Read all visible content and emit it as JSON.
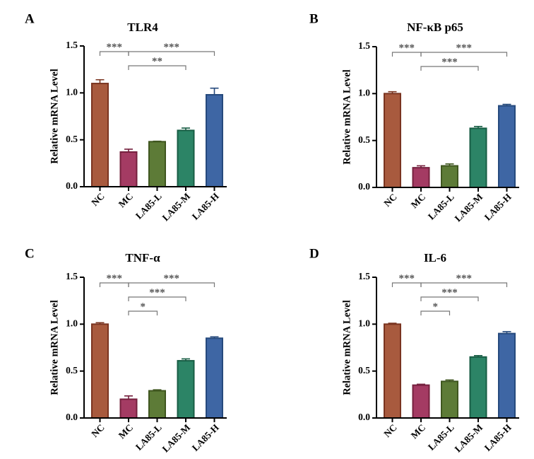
{
  "chart_data": [
    {
      "type": "bar",
      "panel": "A",
      "title": "TLR4",
      "ylabel": "Relative mRNA Level",
      "xlabel": "",
      "ylim": [
        0,
        1.5
      ],
      "yticks": [
        "0.0",
        "0.5",
        "1.0",
        "1.5"
      ],
      "categories": [
        "NC",
        "MC",
        "LA85-L",
        "LA85-M",
        "LA85-H"
      ],
      "values": [
        1.1,
        0.37,
        0.48,
        0.6,
        0.98
      ],
      "errors": [
        0.04,
        0.03,
        0.005,
        0.025,
        0.07
      ],
      "significance": [
        {
          "from": 0,
          "to": 1,
          "label": "***",
          "level": 0
        },
        {
          "from": 1,
          "to": 3,
          "label": "**",
          "level": 1
        },
        {
          "from": 1,
          "to": 4,
          "label": "***",
          "level": 0
        }
      ]
    },
    {
      "type": "bar",
      "panel": "B",
      "title": "NF-κB p65",
      "ylabel": "Relative mRNA Level",
      "xlabel": "",
      "ylim": [
        0,
        1.5
      ],
      "yticks": [
        "0.0",
        "0.5",
        "1.0",
        "1.5"
      ],
      "categories": [
        "NC",
        "MC",
        "LA85-L",
        "LA85-M",
        "LA85-H"
      ],
      "values": [
        1.0,
        0.21,
        0.23,
        0.63,
        0.87
      ],
      "errors": [
        0.02,
        0.02,
        0.02,
        0.02,
        0.015
      ],
      "significance": [
        {
          "from": 0,
          "to": 1,
          "label": "***",
          "level": 0
        },
        {
          "from": 1,
          "to": 3,
          "label": "***",
          "level": 1
        },
        {
          "from": 1,
          "to": 4,
          "label": "***",
          "level": 0
        }
      ]
    },
    {
      "type": "bar",
      "panel": "C",
      "title": "TNF-α",
      "ylabel": "Relative mRNA Level",
      "xlabel": "",
      "ylim": [
        0,
        1.5
      ],
      "yticks": [
        "0.0",
        "0.5",
        "1.0",
        "1.5"
      ],
      "categories": [
        "NC",
        "MC",
        "LA85-L",
        "LA85-M",
        "LA85-H"
      ],
      "values": [
        1.0,
        0.2,
        0.29,
        0.61,
        0.85
      ],
      "errors": [
        0.015,
        0.035,
        0.01,
        0.02,
        0.015
      ],
      "significance": [
        {
          "from": 0,
          "to": 1,
          "label": "***",
          "level": 0
        },
        {
          "from": 1,
          "to": 2,
          "label": "*",
          "level": 2
        },
        {
          "from": 1,
          "to": 3,
          "label": "***",
          "level": 1
        },
        {
          "from": 1,
          "to": 4,
          "label": "***",
          "level": 0
        }
      ]
    },
    {
      "type": "bar",
      "panel": "D",
      "title": "IL-6",
      "ylabel": "Relative mRNA Level",
      "xlabel": "",
      "ylim": [
        0,
        1.5
      ],
      "yticks": [
        "0.0",
        "0.5",
        "1.0",
        "1.5"
      ],
      "categories": [
        "NC",
        "MC",
        "LA85-L",
        "LA85-M",
        "LA85-H"
      ],
      "values": [
        1.0,
        0.35,
        0.39,
        0.65,
        0.9
      ],
      "errors": [
        0.01,
        0.01,
        0.015,
        0.015,
        0.02
      ],
      "significance": [
        {
          "from": 0,
          "to": 1,
          "label": "***",
          "level": 0
        },
        {
          "from": 1,
          "to": 2,
          "label": "*",
          "level": 2
        },
        {
          "from": 1,
          "to": 3,
          "label": "***",
          "level": 1
        },
        {
          "from": 1,
          "to": 4,
          "label": "***",
          "level": 0
        }
      ]
    }
  ],
  "colors": {
    "fill": [
      "#A85A3E",
      "#A43B63",
      "#5D7B37",
      "#2C8466",
      "#3E66A4"
    ],
    "edge": [
      "#7A3420",
      "#75203E",
      "#3F561F",
      "#175D44",
      "#264A7D"
    ]
  }
}
